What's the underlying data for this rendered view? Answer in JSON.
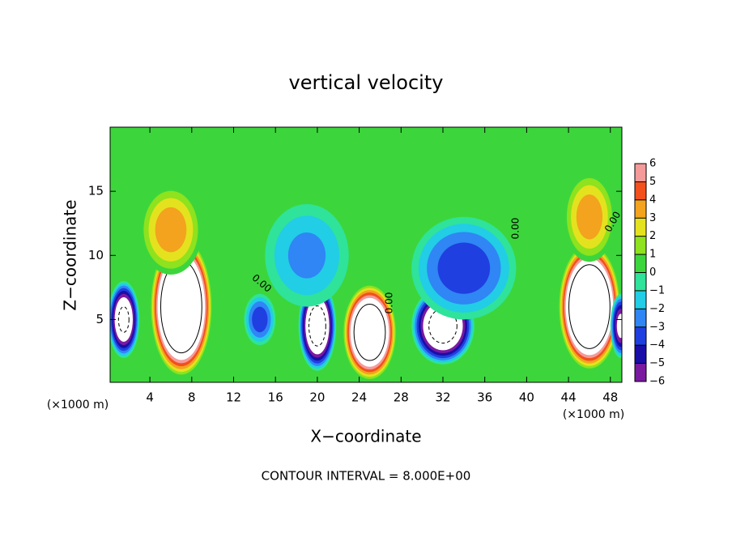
{
  "chart_data": {
    "type": "contour",
    "title": "vertical velocity",
    "x_label": "X−coordinate",
    "y_label": "Z−coordinate",
    "x_unit_left": "(×1000 m)",
    "x_unit_right": "(×1000 m)",
    "footer": "CONTOUR INTERVAL = 8.000E+00",
    "contour_interval": 8,
    "xlim": [
      0.2,
      49.1
    ],
    "ylim": [
      0.1,
      20
    ],
    "xticks": [
      4,
      8,
      12,
      16,
      20,
      24,
      28,
      32,
      36,
      40,
      44,
      48
    ],
    "yticks": [
      5,
      10,
      15
    ],
    "colorbar_ticks": [
      {
        "value": -6,
        "label": "−6"
      },
      {
        "value": -5,
        "label": "−5"
      },
      {
        "value": -4,
        "label": "−4"
      },
      {
        "value": -3,
        "label": "−3"
      },
      {
        "value": -2,
        "label": "−2"
      },
      {
        "value": -1,
        "label": "−1"
      },
      0,
      1,
      2,
      3,
      4,
      5,
      6
    ],
    "colors": [
      "#7a1aa0",
      "#1a0ea8",
      "#1f3fe0",
      "#2f86f4",
      "#22cde6",
      "#2fe39a",
      "#3cd63c",
      "#8ee21e",
      "#e4e21e",
      "#f3a31e",
      "#f2501d",
      "#f59a9a"
    ],
    "contour_labels": [
      "0.00",
      "0.00",
      "0.00",
      "0.00"
    ],
    "cells": {
      "x": [
        7,
        6,
        25,
        46,
        46,
        1.5,
        20,
        32,
        34,
        19,
        14.5,
        49
      ],
      "z": [
        6,
        12,
        4,
        6,
        13,
        5,
        4.5,
        4.5,
        9,
        10,
        5,
        4.5
      ],
      "rx": [
        3,
        3,
        2.6,
        3,
        2.5,
        1.5,
        1.8,
        3,
        5,
        4,
        1.5,
        1
      ],
      "rz": [
        5.5,
        3.5,
        3.8,
        5,
        3.5,
        3,
        3.5,
        3,
        4,
        4,
        2,
        2.5
      ],
      "values": [
        14,
        4,
        12,
        14,
        4,
        -9,
        -10,
        -10,
        -4,
        -2.5,
        -4,
        -7
      ]
    }
  }
}
